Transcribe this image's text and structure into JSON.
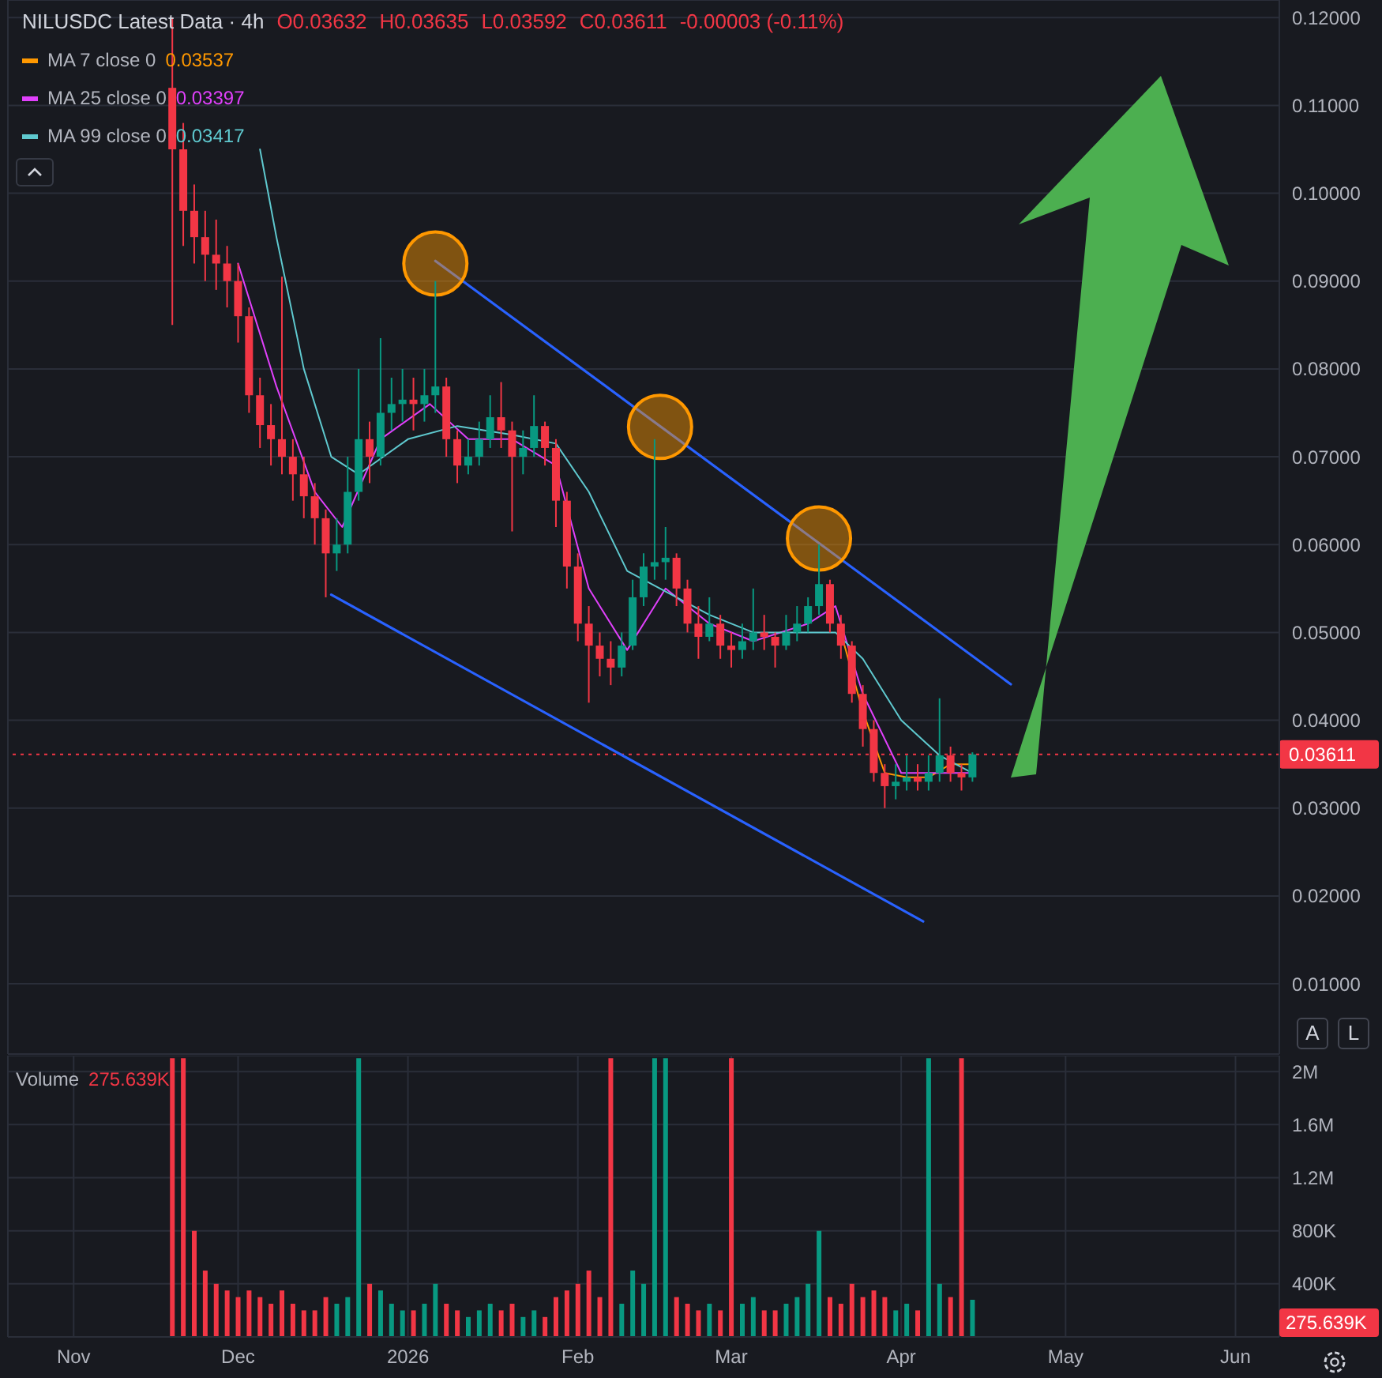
{
  "chart_data": [
    {
      "type": "candlestick",
      "title": "NILUSDC Latest Data · 4h",
      "x": [
        "2025-11-19",
        "2025-11-21",
        "2025-11-23",
        "2025-11-25",
        "2025-11-27",
        "2025-11-29",
        "2025-12-01",
        "2025-12-03",
        "2025-12-05",
        "2025-12-07",
        "2025-12-09",
        "2025-12-11",
        "2025-12-13",
        "2025-12-15",
        "2025-12-17",
        "2025-12-19",
        "2025-12-21",
        "2025-12-23",
        "2025-12-25",
        "2025-12-27",
        "2025-12-29",
        "2025-12-31",
        "2026-01-02",
        "2026-01-04",
        "2026-01-06",
        "2026-01-08",
        "2026-01-10",
        "2026-01-12",
        "2026-01-14",
        "2026-01-16",
        "2026-01-18",
        "2026-01-20",
        "2026-01-22",
        "2026-01-24",
        "2026-01-26",
        "2026-01-28",
        "2026-01-30",
        "2026-02-01",
        "2026-02-03",
        "2026-02-05",
        "2026-02-07",
        "2026-02-09",
        "2026-02-11",
        "2026-02-13",
        "2026-02-15",
        "2026-02-17",
        "2026-02-19",
        "2026-02-21",
        "2026-02-23",
        "2026-02-25",
        "2026-02-27",
        "2026-03-01",
        "2026-03-03",
        "2026-03-05",
        "2026-03-07",
        "2026-03-09",
        "2026-03-11",
        "2026-03-13",
        "2026-03-15",
        "2026-03-17",
        "2026-03-19",
        "2026-03-21",
        "2026-03-23",
        "2026-03-25",
        "2026-03-27",
        "2026-03-29",
        "2026-03-31",
        "2026-04-02",
        "2026-04-04",
        "2026-04-06",
        "2026-04-08",
        "2026-04-10",
        "2026-04-12",
        "2026-04-14"
      ],
      "ohlc": [
        [
          0.112,
          0.12,
          0.085,
          0.105
        ],
        [
          0.105,
          0.108,
          0.094,
          0.098
        ],
        [
          0.098,
          0.101,
          0.092,
          0.095
        ],
        [
          0.095,
          0.098,
          0.09,
          0.093
        ],
        [
          0.093,
          0.097,
          0.089,
          0.092
        ],
        [
          0.092,
          0.094,
          0.087,
          0.09
        ],
        [
          0.09,
          0.092,
          0.083,
          0.086
        ],
        [
          0.086,
          0.087,
          0.075,
          0.077
        ],
        [
          0.077,
          0.079,
          0.071,
          0.0736
        ],
        [
          0.0736,
          0.076,
          0.069,
          0.072
        ],
        [
          0.072,
          0.0905,
          0.068,
          0.07
        ],
        [
          0.07,
          0.072,
          0.065,
          0.068
        ],
        [
          0.068,
          0.07,
          0.063,
          0.0655
        ],
        [
          0.0655,
          0.067,
          0.06,
          0.063
        ],
        [
          0.063,
          0.064,
          0.054,
          0.059
        ],
        [
          0.059,
          0.063,
          0.057,
          0.06
        ],
        [
          0.06,
          0.07,
          0.059,
          0.066
        ],
        [
          0.066,
          0.08,
          0.065,
          0.072
        ],
        [
          0.072,
          0.074,
          0.067,
          0.07
        ],
        [
          0.07,
          0.0835,
          0.069,
          0.075
        ],
        [
          0.075,
          0.079,
          0.073,
          0.076
        ],
        [
          0.076,
          0.08,
          0.074,
          0.0765
        ],
        [
          0.0765,
          0.079,
          0.073,
          0.076
        ],
        [
          0.076,
          0.08,
          0.074,
          0.077
        ],
        [
          0.077,
          0.09,
          0.075,
          0.078
        ],
        [
          0.078,
          0.079,
          0.07,
          0.072
        ],
        [
          0.072,
          0.073,
          0.067,
          0.069
        ],
        [
          0.069,
          0.072,
          0.068,
          0.07
        ],
        [
          0.07,
          0.074,
          0.069,
          0.072
        ],
        [
          0.072,
          0.077,
          0.071,
          0.0745
        ],
        [
          0.0745,
          0.0785,
          0.071,
          0.073
        ],
        [
          0.073,
          0.074,
          0.0615,
          0.07
        ],
        [
          0.07,
          0.073,
          0.068,
          0.071
        ],
        [
          0.071,
          0.077,
          0.07,
          0.0735
        ],
        [
          0.0735,
          0.074,
          0.069,
          0.071
        ],
        [
          0.071,
          0.072,
          0.062,
          0.065
        ],
        [
          0.065,
          0.066,
          0.055,
          0.0575
        ],
        [
          0.0575,
          0.059,
          0.049,
          0.051
        ],
        [
          0.051,
          0.053,
          0.042,
          0.0485
        ],
        [
          0.0485,
          0.05,
          0.045,
          0.047
        ],
        [
          0.047,
          0.049,
          0.044,
          0.046
        ],
        [
          0.046,
          0.05,
          0.045,
          0.0485
        ],
        [
          0.0485,
          0.056,
          0.048,
          0.054
        ],
        [
          0.054,
          0.059,
          0.053,
          0.0575
        ],
        [
          0.0575,
          0.072,
          0.056,
          0.058
        ],
        [
          0.058,
          0.062,
          0.056,
          0.0585
        ],
        [
          0.0585,
          0.059,
          0.053,
          0.055
        ],
        [
          0.055,
          0.056,
          0.05,
          0.051
        ],
        [
          0.051,
          0.053,
          0.047,
          0.0495
        ],
        [
          0.0495,
          0.054,
          0.049,
          0.051
        ],
        [
          0.051,
          0.052,
          0.047,
          0.0485
        ],
        [
          0.0485,
          0.05,
          0.046,
          0.048
        ],
        [
          0.048,
          0.051,
          0.047,
          0.049
        ],
        [
          0.049,
          0.055,
          0.048,
          0.05
        ],
        [
          0.05,
          0.052,
          0.048,
          0.0495
        ],
        [
          0.0495,
          0.05,
          0.046,
          0.0485
        ],
        [
          0.0485,
          0.052,
          0.048,
          0.05
        ],
        [
          0.05,
          0.053,
          0.049,
          0.051
        ],
        [
          0.051,
          0.054,
          0.05,
          0.053
        ],
        [
          0.053,
          0.06,
          0.052,
          0.0555
        ],
        [
          0.0555,
          0.056,
          0.05,
          0.051
        ],
        [
          0.051,
          0.052,
          0.047,
          0.0485
        ],
        [
          0.0485,
          0.049,
          0.042,
          0.043
        ],
        [
          0.043,
          0.044,
          0.037,
          0.039
        ],
        [
          0.039,
          0.04,
          0.033,
          0.034
        ],
        [
          0.034,
          0.035,
          0.03,
          0.0325
        ],
        [
          0.0325,
          0.035,
          0.031,
          0.033
        ],
        [
          0.033,
          0.036,
          0.032,
          0.0335
        ],
        [
          0.0335,
          0.035,
          0.032,
          0.033
        ],
        [
          0.033,
          0.036,
          0.032,
          0.034
        ],
        [
          0.034,
          0.0425,
          0.033,
          0.036
        ],
        [
          0.036,
          0.037,
          0.033,
          0.034
        ],
        [
          0.034,
          0.035,
          0.032,
          0.0335
        ],
        [
          0.0335,
          0.03635,
          0.033,
          0.03611
        ]
      ],
      "colors": [
        "#f23645",
        "#f23645",
        "#f23645",
        "#f23645",
        "#f23645",
        "#f23645",
        "#f23645",
        "#f23645",
        "#f23645",
        "#f23645",
        "#f23645",
        "#f23645",
        "#f23645",
        "#f23645",
        "#f23645",
        "#089981",
        "#089981",
        "#089981",
        "#f23645",
        "#089981",
        "#089981",
        "#089981",
        "#f23645",
        "#089981",
        "#089981",
        "#f23645",
        "#f23645",
        "#089981",
        "#089981",
        "#089981",
        "#f23645",
        "#f23645",
        "#089981",
        "#089981",
        "#f23645",
        "#f23645",
        "#f23645",
        "#f23645",
        "#f23645",
        "#f23645",
        "#f23645",
        "#089981",
        "#089981",
        "#089981",
        "#089981",
        "#089981",
        "#f23645",
        "#f23645",
        "#f23645",
        "#089981",
        "#f23645",
        "#f23645",
        "#089981",
        "#089981",
        "#f23645",
        "#f23645",
        "#089981",
        "#089981",
        "#089981",
        "#089981",
        "#f23645",
        "#f23645",
        "#f23645",
        "#f23645",
        "#f23645",
        "#f23645",
        "#089981",
        "#089981",
        "#f23645",
        "#089981",
        "#089981",
        "#f23645",
        "#f23645",
        "#089981"
      ],
      "series": [
        {
          "name": "MA 7 close 0",
          "type": "line",
          "color": "#ff9800",
          "x": [
            "2026-03-21",
            "2026-03-25",
            "2026-03-29",
            "2026-04-02",
            "2026-04-06",
            "2026-04-10",
            "2026-04-14"
          ],
          "values": [
            0.05,
            0.041,
            0.034,
            0.0335,
            0.0335,
            0.035,
            0.035
          ]
        },
        {
          "name": "MA 25 close 0",
          "type": "line",
          "color": "#e040fb",
          "x": [
            "2025-12-01",
            "2025-12-08",
            "2025-12-15",
            "2025-12-20",
            "2025-12-27",
            "2026-01-05",
            "2026-01-12",
            "2026-01-20",
            "2026-01-28",
            "2026-02-03",
            "2026-02-10",
            "2026-02-17",
            "2026-02-25",
            "2026-03-05",
            "2026-03-15",
            "2026-03-20",
            "2026-03-25",
            "2026-04-01",
            "2026-04-08",
            "2026-04-14"
          ],
          "values": [
            0.092,
            0.078,
            0.066,
            0.062,
            0.072,
            0.076,
            0.072,
            0.072,
            0.069,
            0.055,
            0.048,
            0.055,
            0.051,
            0.049,
            0.051,
            0.053,
            0.043,
            0.034,
            0.034,
            0.034
          ]
        },
        {
          "name": "MA 99 close 0",
          "type": "line",
          "color": "#5fc9cf",
          "x": [
            "2025-12-05",
            "2025-12-08",
            "2025-12-13",
            "2025-12-18",
            "2025-12-23",
            "2026-01-01",
            "2026-01-10",
            "2026-01-20",
            "2026-01-28",
            "2026-02-03",
            "2026-02-10",
            "2026-02-16",
            "2026-02-25",
            "2026-03-05",
            "2026-03-15",
            "2026-03-20",
            "2026-03-25",
            "2026-04-01",
            "2026-04-08",
            "2026-04-14"
          ],
          "values": [
            0.105,
            0.095,
            0.08,
            0.07,
            0.068,
            0.072,
            0.0735,
            0.0725,
            0.0715,
            0.066,
            0.057,
            0.055,
            0.052,
            0.05,
            0.05,
            0.05,
            0.047,
            0.04,
            0.036,
            0.034
          ]
        },
        {
          "type": "line",
          "color": "#2962ff",
          "x": [
            "2026-01-06",
            "2026-04-21"
          ],
          "values": [
            0.0923,
            0.0441
          ]
        },
        {
          "type": "line",
          "color": "#2962ff",
          "x": [
            "2025-12-18",
            "2026-04-05"
          ],
          "values": [
            0.0543,
            0.0171
          ]
        },
        {
          "type": "scatter",
          "marker": "circle",
          "color": "#ff9800",
          "x": [
            "2026-01-06",
            "2026-02-16",
            "2026-03-17"
          ],
          "values": [
            0.092,
            0.0734,
            0.0607
          ]
        }
      ],
      "xlim": [
        "2025-10-20",
        "2026-06-09"
      ],
      "xticks": [
        {
          "value": "2025-11-01",
          "label": null
        },
        {
          "value": "2025-12-01",
          "label": null
        },
        {
          "value": "2026-01-01",
          "label": null
        },
        {
          "value": "2026-02-01",
          "label": null
        },
        {
          "value": "2026-03-01",
          "label": null
        },
        {
          "value": "2026-04-01",
          "label": null
        },
        {
          "value": "2026-05-01",
          "label": null
        },
        {
          "value": "2026-06-01",
          "label": null
        }
      ],
      "ylim": [
        0.002,
        0.122
      ],
      "yticks": [
        {
          "value": 0.01,
          "label": "0.01000"
        },
        {
          "value": 0.02,
          "label": "0.02000"
        },
        {
          "value": 0.03,
          "label": "0.03000"
        },
        {
          "value": 0.04,
          "label": "0.04000"
        },
        {
          "value": 0.05,
          "label": "0.05000"
        },
        {
          "value": 0.06,
          "label": "0.06000"
        },
        {
          "value": 0.07,
          "label": "0.07000"
        },
        {
          "value": 0.08,
          "label": "0.08000"
        },
        {
          "value": 0.09,
          "label": "0.09000"
        },
        {
          "value": 0.1,
          "label": "0.10000"
        },
        {
          "value": 0.11,
          "label": "0.11000"
        },
        {
          "value": 0.12,
          "label": "0.12000"
        }
      ],
      "grid": true,
      "tick_labels": "y",
      "legend": "top left",
      "ref_lines": [
        {
          "axis": "y",
          "value": 0.03611,
          "label": "0.03611",
          "color": "#f23645",
          "line_style": "dotted"
        }
      ],
      "annotations": [
        "O0.03632",
        "H0.03635",
        "L0.03592",
        "C0.03611",
        "-0.00003 (-0.11%)",
        "0.03537",
        "0.03397",
        "0.03417",
        "A",
        "L"
      ]
    },
    {
      "type": "bar",
      "x": [
        "2025-11-19",
        "2025-11-21",
        "2025-11-23",
        "2025-11-25",
        "2025-11-27",
        "2025-11-29",
        "2025-12-01",
        "2025-12-03",
        "2025-12-05",
        "2025-12-07",
        "2025-12-09",
        "2025-12-11",
        "2025-12-13",
        "2025-12-15",
        "2025-12-17",
        "2025-12-19",
        "2025-12-21",
        "2025-12-23",
        "2025-12-25",
        "2025-12-27",
        "2025-12-29",
        "2025-12-31",
        "2026-01-02",
        "2026-01-04",
        "2026-01-06",
        "2026-01-08",
        "2026-01-10",
        "2026-01-12",
        "2026-01-14",
        "2026-01-16",
        "2026-01-18",
        "2026-01-20",
        "2026-01-22",
        "2026-01-24",
        "2026-01-26",
        "2026-01-28",
        "2026-01-30",
        "2026-02-01",
        "2026-02-03",
        "2026-02-05",
        "2026-02-07",
        "2026-02-09",
        "2026-02-11",
        "2026-02-13",
        "2026-02-15",
        "2026-02-17",
        "2026-02-19",
        "2026-02-21",
        "2026-02-23",
        "2026-02-25",
        "2026-02-27",
        "2026-03-01",
        "2026-03-03",
        "2026-03-05",
        "2026-03-07",
        "2026-03-09",
        "2026-03-11",
        "2026-03-13",
        "2026-03-15",
        "2026-03-17",
        "2026-03-19",
        "2026-03-21",
        "2026-03-23",
        "2026-03-25",
        "2026-03-27",
        "2026-03-29",
        "2026-03-31",
        "2026-04-02",
        "2026-04-04",
        "2026-04-06",
        "2026-04-08",
        "2026-04-10",
        "2026-04-12",
        "2026-04-14"
      ],
      "series": [
        {
          "name": "Volume",
          "values": [
            2100000,
            2100000,
            800000,
            500000,
            400000,
            350000,
            300000,
            350000,
            300000,
            250000,
            350000,
            250000,
            200000,
            200000,
            300000,
            250000,
            300000,
            2100000,
            400000,
            350000,
            250000,
            200000,
            200000,
            250000,
            400000,
            250000,
            200000,
            150000,
            200000,
            250000,
            200000,
            250000,
            150000,
            200000,
            150000,
            300000,
            350000,
            400000,
            500000,
            300000,
            2100000,
            250000,
            500000,
            400000,
            2100000,
            2100000,
            300000,
            250000,
            200000,
            250000,
            200000,
            2100000,
            250000,
            300000,
            200000,
            200000,
            250000,
            300000,
            400000,
            800000,
            300000,
            250000,
            400000,
            300000,
            350000,
            300000,
            200000,
            250000,
            200000,
            2100000,
            400000,
            300000,
            2100000,
            280000
          ],
          "colors": [
            "#f23645",
            "#f23645",
            "#f23645",
            "#f23645",
            "#f23645",
            "#f23645",
            "#f23645",
            "#f23645",
            "#f23645",
            "#f23645",
            "#f23645",
            "#f23645",
            "#f23645",
            "#f23645",
            "#f23645",
            "#089981",
            "#089981",
            "#089981",
            "#f23645",
            "#089981",
            "#089981",
            "#089981",
            "#f23645",
            "#089981",
            "#089981",
            "#f23645",
            "#f23645",
            "#089981",
            "#089981",
            "#089981",
            "#f23645",
            "#f23645",
            "#089981",
            "#089981",
            "#f23645",
            "#f23645",
            "#f23645",
            "#f23645",
            "#f23645",
            "#f23645",
            "#f23645",
            "#089981",
            "#089981",
            "#089981",
            "#089981",
            "#089981",
            "#f23645",
            "#f23645",
            "#f23645",
            "#089981",
            "#f23645",
            "#f23645",
            "#089981",
            "#089981",
            "#f23645",
            "#f23645",
            "#089981",
            "#089981",
            "#089981",
            "#089981",
            "#f23645",
            "#f23645",
            "#f23645",
            "#f23645",
            "#f23645",
            "#f23645",
            "#089981",
            "#089981",
            "#f23645",
            "#089981",
            "#089981",
            "#f23645",
            "#f23645",
            "#089981"
          ]
        }
      ],
      "xlim": [
        "2025-10-20",
        "2026-06-09"
      ],
      "xticks": [
        {
          "value": "2025-11-01",
          "label": "Nov"
        },
        {
          "value": "2025-12-01",
          "label": "Dec"
        },
        {
          "value": "2026-01-01",
          "label": "2026"
        },
        {
          "value": "2026-02-01",
          "label": "Feb"
        },
        {
          "value": "2026-03-01",
          "label": "Mar"
        },
        {
          "value": "2026-04-01",
          "label": "Apr"
        },
        {
          "value": "2026-05-01",
          "label": "May"
        },
        {
          "value": "2026-06-01",
          "label": "Jun"
        }
      ],
      "ylim": [
        0,
        2120000
      ],
      "yticks": [
        {
          "value": 400000,
          "label": "400K"
        },
        {
          "value": 800000,
          "label": "800K"
        },
        {
          "value": 1200000,
          "label": "1.2M"
        },
        {
          "value": 1600000,
          "label": "1.6M"
        },
        {
          "value": 2000000,
          "label": "2M"
        }
      ],
      "grid": true,
      "legend": "top left",
      "annotations": [
        "275.639K",
        "275.639K"
      ]
    }
  ]
}
